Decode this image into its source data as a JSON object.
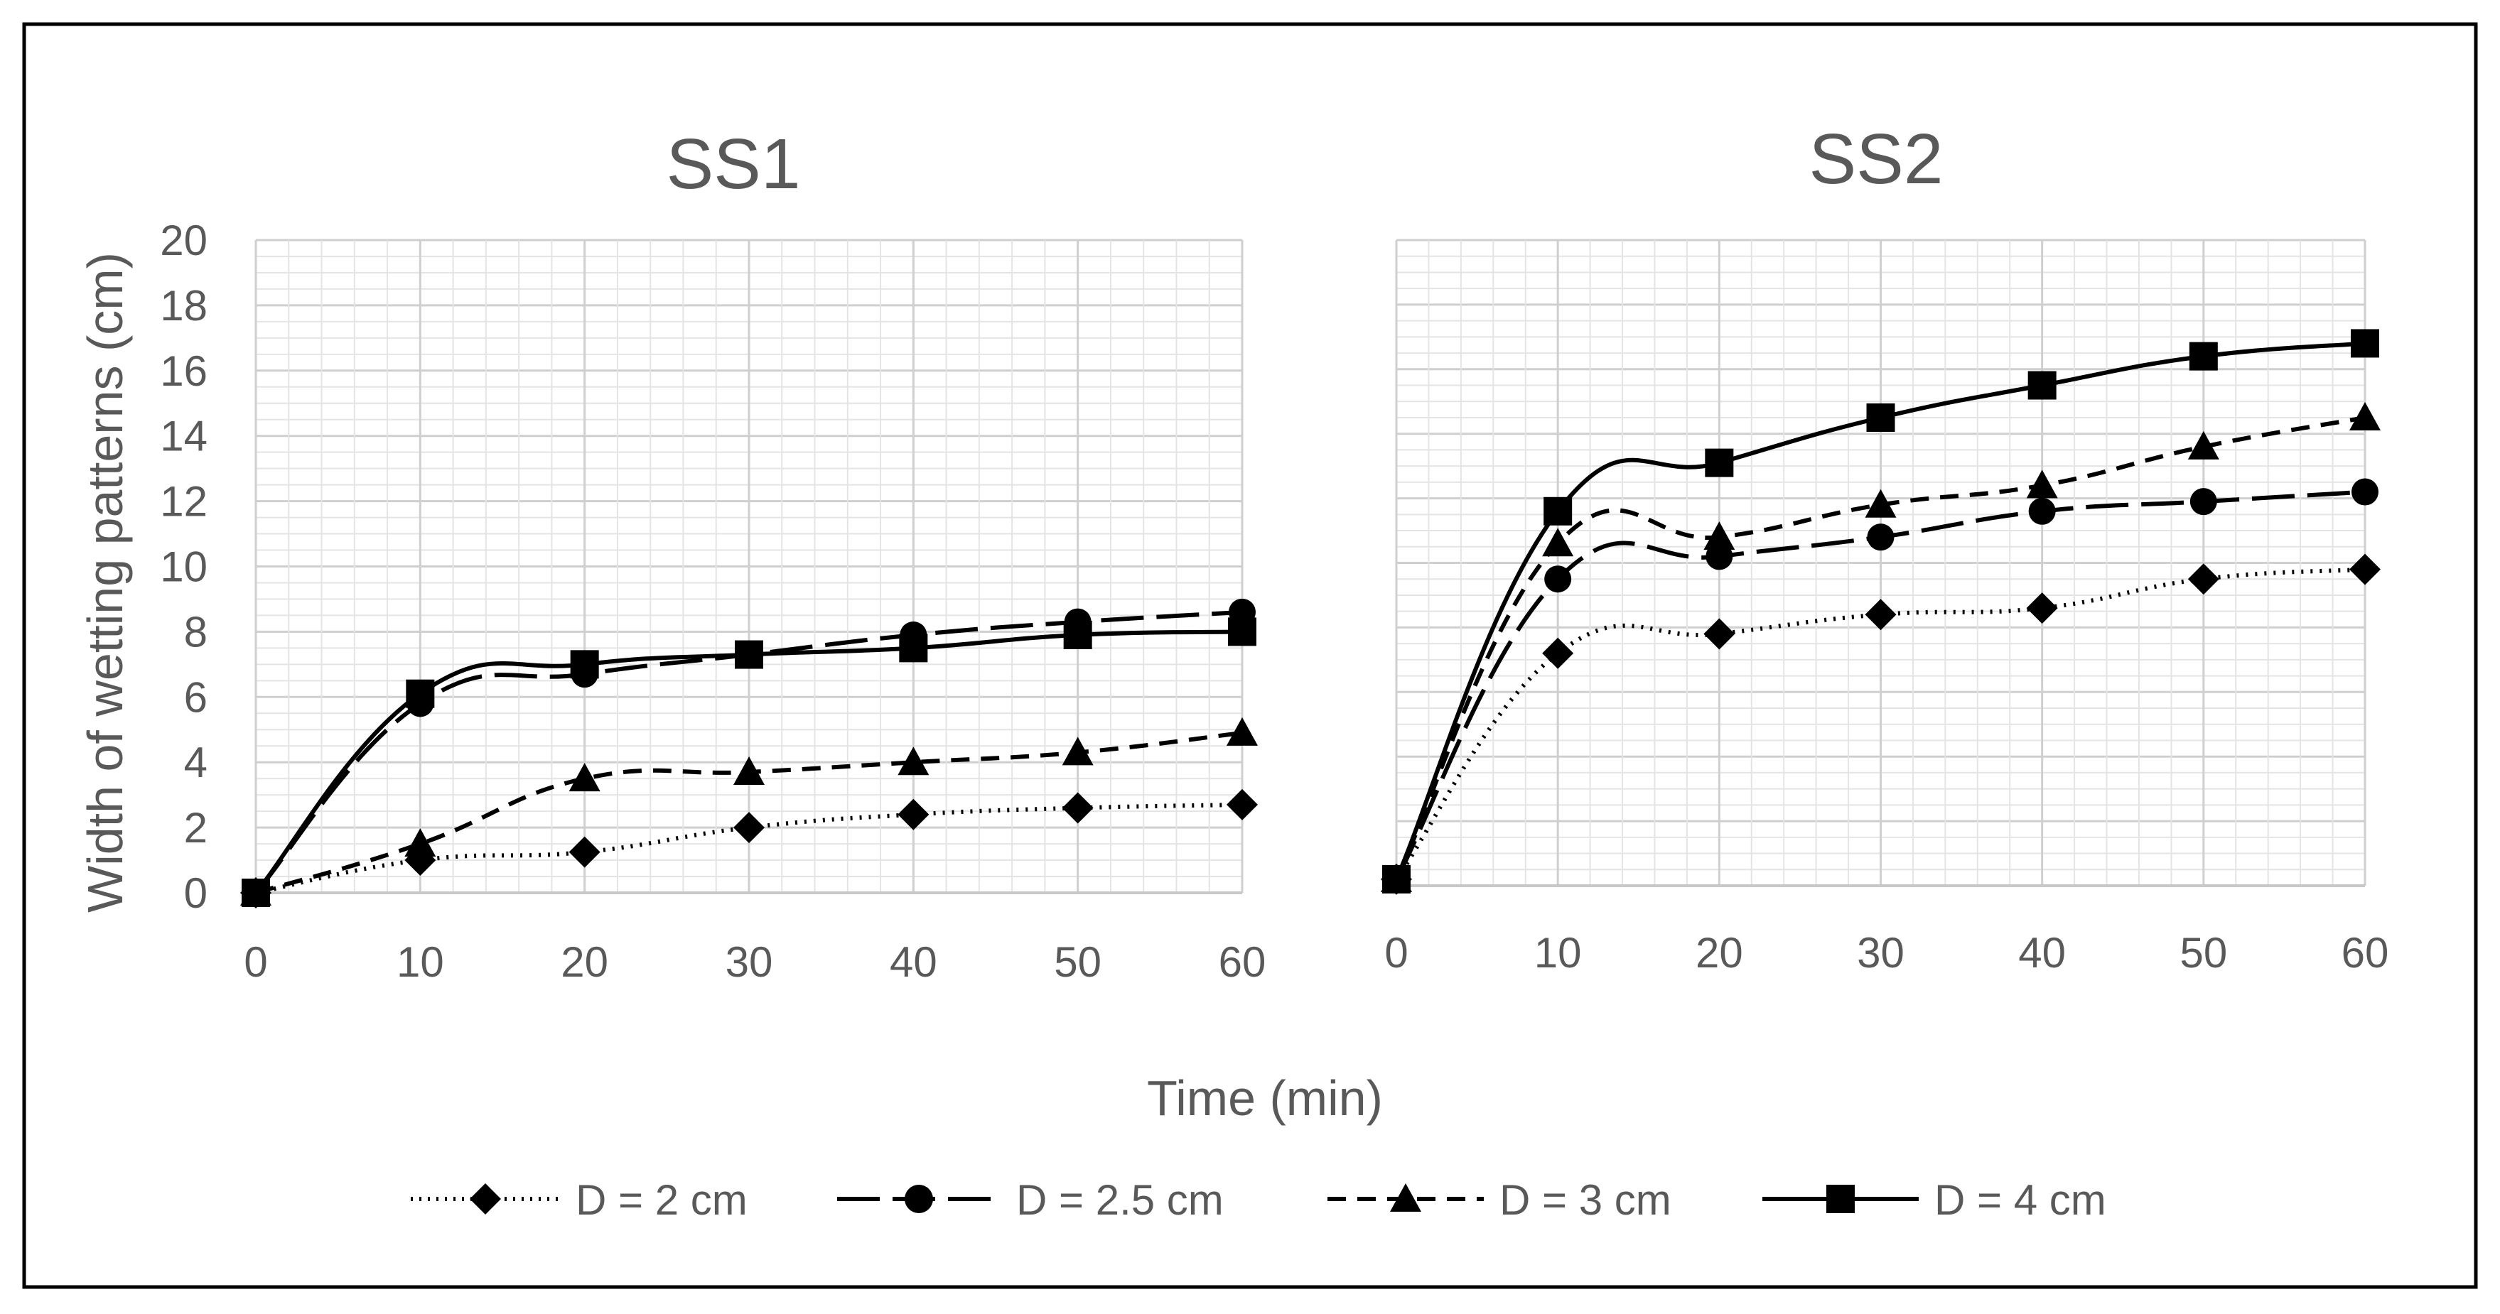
{
  "chart_data": {
    "type": "line",
    "ylabel": "Width of wetting patterns (cm)",
    "xlabel": "Time (min)",
    "x": [
      0,
      10,
      20,
      30,
      40,
      50,
      60
    ],
    "xlim": [
      0,
      60
    ],
    "ylim": [
      0,
      20
    ],
    "xticks": [
      "0",
      "10",
      "20",
      "30",
      "40",
      "50",
      "60"
    ],
    "yticks": [
      "0",
      "2",
      "4",
      "6",
      "8",
      "10",
      "12",
      "14",
      "16",
      "18",
      "20"
    ],
    "legend": {
      "placement": "bottom",
      "labels": [
        "D = 2 cm",
        "D = 2.5 cm",
        "D = 3 cm",
        "D = 4 cm"
      ]
    },
    "grid": true,
    "panels": [
      {
        "title": "SS1",
        "series": [
          {
            "name": "D = 2 cm",
            "marker": "diamond",
            "dash": "dotted",
            "values": [
              0,
              1.0,
              1.25,
              2.0,
              2.4,
              2.6,
              2.7
            ]
          },
          {
            "name": "D = 2.5 cm",
            "marker": "circle",
            "dash": "longdash",
            "values": [
              0,
              5.8,
              6.7,
              7.3,
              7.9,
              8.3,
              8.6
            ]
          },
          {
            "name": "D = 3 cm",
            "marker": "triangle",
            "dash": "dashed",
            "values": [
              0,
              1.5,
              3.5,
              3.7,
              4.0,
              4.3,
              4.9
            ]
          },
          {
            "name": "D = 4 cm",
            "marker": "square",
            "dash": "solid",
            "values": [
              0,
              6.1,
              7.0,
              7.3,
              7.5,
              7.9,
              8.0
            ]
          }
        ]
      },
      {
        "title": "SS2",
        "series": [
          {
            "name": "D = 2 cm",
            "marker": "diamond",
            "dash": "dotted",
            "values": [
              0.2,
              7.2,
              7.8,
              8.4,
              8.6,
              9.5,
              9.8
            ]
          },
          {
            "name": "D = 2.5 cm",
            "marker": "circle",
            "dash": "longdash",
            "values": [
              0.2,
              9.5,
              10.2,
              10.8,
              11.6,
              11.9,
              12.2
            ]
          },
          {
            "name": "D = 3 cm",
            "marker": "triangle",
            "dash": "dashed",
            "values": [
              0.2,
              10.6,
              10.8,
              11.8,
              12.4,
              13.6,
              14.5
            ]
          },
          {
            "name": "D = 4 cm",
            "marker": "square",
            "dash": "solid",
            "values": [
              0.2,
              11.6,
              13.1,
              14.5,
              15.5,
              16.4,
              16.8
            ]
          }
        ]
      }
    ]
  },
  "colors": {
    "line": "#000000",
    "text": "#595959",
    "grid": "#d9d9d9",
    "frame": "#000000",
    "background": "#ffffff"
  }
}
